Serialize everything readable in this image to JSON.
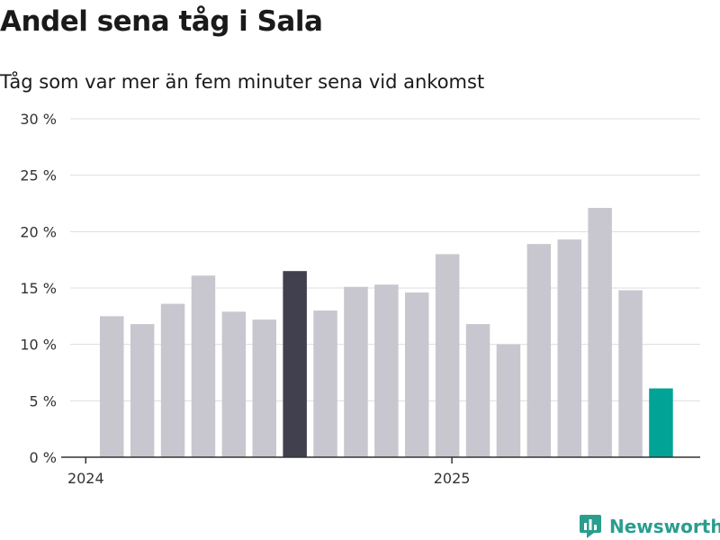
{
  "title": "Andel sena tåg i Sala",
  "subtitle": "Tåg som var mer än fem minuter sena vid ankomst",
  "brand": "Newsworthy",
  "colors": {
    "bar": "#c8c7cf",
    "highlight": "#40404e",
    "latest": "#00a396",
    "grid": "#dedede",
    "axis": "#333333",
    "brand": "#2a9d8f"
  },
  "chart_data": {
    "type": "bar",
    "title": "Andel sena tåg i Sala",
    "subtitle": "Tåg som var mer än fem minuter sena vid ankomst",
    "xlabel": "",
    "ylabel": "",
    "ylim": [
      0,
      30
    ],
    "yticks": [
      0,
      5,
      10,
      15,
      20,
      25,
      30
    ],
    "ytick_labels": [
      "0 %",
      "5 %",
      "10 %",
      "15 %",
      "20 %",
      "25 %",
      "30 %"
    ],
    "xtick_labels": [
      "2024",
      "2025"
    ],
    "xtick_positions": [
      0,
      12
    ],
    "grid": true,
    "values": [
      12.5,
      11.8,
      13.6,
      16.1,
      12.9,
      12.2,
      16.5,
      13.0,
      15.1,
      15.3,
      14.6,
      18.0,
      11.8,
      10.0,
      18.9,
      19.3,
      22.1,
      14.8,
      6.1
    ],
    "highlight_index": 6,
    "latest_index": 18
  }
}
